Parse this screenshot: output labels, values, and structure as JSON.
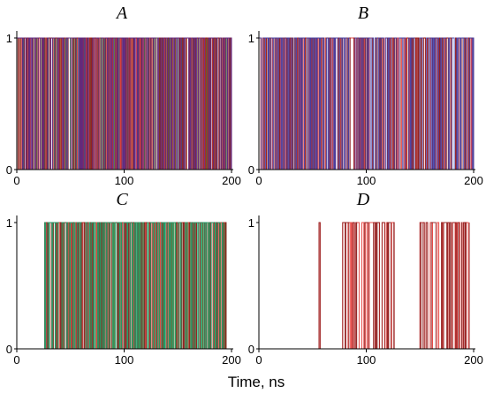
{
  "xlabel": "Time, ns",
  "chart_data": [
    {
      "panel": "A",
      "type": "line",
      "title": "A",
      "xlim": [
        0,
        200
      ],
      "ylim": [
        0,
        1
      ],
      "xticks": [
        0,
        100,
        200
      ],
      "yticks": [
        0,
        1
      ],
      "series_colors": [
        "#2e7d32",
        "#e53935",
        "#8b1a1a",
        "#5c2a8a"
      ],
      "switch_density": "high",
      "active_intervals": [
        [
          0,
          200
        ]
      ]
    },
    {
      "panel": "B",
      "type": "line",
      "title": "B",
      "xlim": [
        0,
        200
      ],
      "ylim": [
        0,
        1
      ],
      "xticks": [
        0,
        100,
        200
      ],
      "yticks": [
        0,
        1
      ],
      "series_colors": [
        "#e53935",
        "#8b1a1a",
        "#3f3fa8"
      ],
      "switch_density": "high",
      "active_intervals": [
        [
          0,
          200
        ]
      ]
    },
    {
      "panel": "C",
      "type": "line",
      "title": "C",
      "xlim": [
        0,
        200
      ],
      "ylim": [
        0,
        1
      ],
      "xticks": [
        0,
        100,
        200
      ],
      "yticks": [
        0,
        1
      ],
      "series_colors": [
        "#2e7d32",
        "#e53935",
        "#8b1a1a",
        "#1aa36b"
      ],
      "switch_density": "high",
      "active_intervals": [
        [
          26,
          195
        ]
      ]
    },
    {
      "panel": "D",
      "type": "line",
      "title": "D",
      "xlim": [
        0,
        200
      ],
      "ylim": [
        0,
        1
      ],
      "xticks": [
        0,
        100,
        200
      ],
      "yticks": [
        0,
        1
      ],
      "series_colors": [
        "#e53935",
        "#8b1a1a"
      ],
      "switch_density": "medium",
      "active_intervals": [
        [
          56,
          57
        ],
        [
          78,
          126
        ],
        [
          150,
          196
        ]
      ]
    }
  ]
}
